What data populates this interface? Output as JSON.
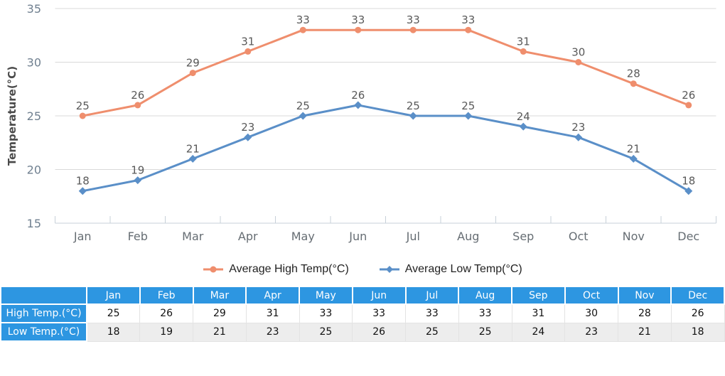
{
  "chart_data": {
    "type": "line",
    "categories": [
      "Jan",
      "Feb",
      "Mar",
      "Apr",
      "May",
      "Jun",
      "Jul",
      "Aug",
      "Sep",
      "Oct",
      "Nov",
      "Dec"
    ],
    "series": [
      {
        "name": "Average High Temp(°C)",
        "marker": "circle",
        "color": "#ef8e6d",
        "values": [
          25,
          26,
          29,
          31,
          33,
          33,
          33,
          33,
          31,
          30,
          28,
          26
        ]
      },
      {
        "name": "Average Low Temp(°C)",
        "marker": "diamond",
        "color": "#5a8fc8",
        "values": [
          18,
          19,
          21,
          23,
          25,
          26,
          25,
          25,
          24,
          23,
          21,
          18
        ]
      }
    ],
    "title": "",
    "xlabel": "",
    "ylabel": "Temperature(°C)",
    "ylim": [
      15,
      35
    ],
    "ytick_step": 5,
    "grid": true,
    "legend_position": "bottom",
    "data_labels": true
  },
  "colors": {
    "gridline": "#d9d9d9",
    "axis_line": "#c7d0d8",
    "y_tick_label": "#708090",
    "x_tick_label": "#666d73",
    "data_label": "#595959",
    "axis_title": "#4a4a4a",
    "table_header_bg": "#2d96e1",
    "table_row_alt_bg": "#ededed"
  },
  "table": {
    "corner_label": "",
    "columns": [
      "Jan",
      "Feb",
      "Mar",
      "Apr",
      "May",
      "Jun",
      "Jul",
      "Aug",
      "Sep",
      "Oct",
      "Nov",
      "Dec"
    ],
    "rows": [
      {
        "label": "High Temp.(°C)",
        "values": [
          "25",
          "26",
          "29",
          "31",
          "33",
          "33",
          "33",
          "33",
          "31",
          "30",
          "28",
          "26"
        ]
      },
      {
        "label": "Low Temp.(°C)",
        "values": [
          "18",
          "19",
          "21",
          "23",
          "25",
          "26",
          "25",
          "25",
          "24",
          "23",
          "21",
          "18"
        ]
      }
    ]
  }
}
